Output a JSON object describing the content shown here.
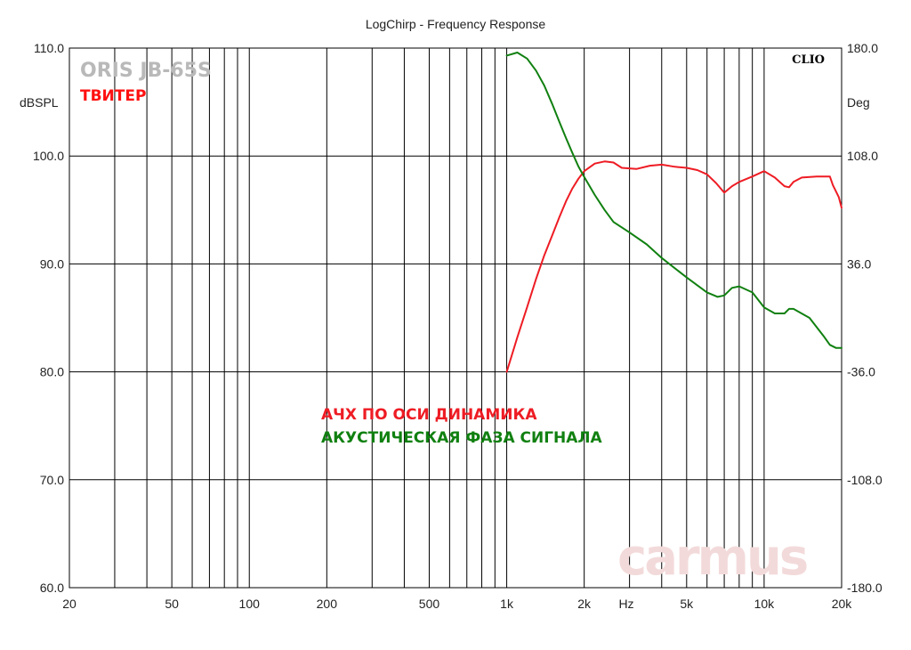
{
  "chart_data": {
    "type": "line",
    "title": "LogChirp - Frequency Response",
    "brand_label": "ORIS JB-65S",
    "subtitle": "ТВИТЕР",
    "software_label": "CLIO",
    "watermark": "carmus",
    "xlabel": "Hz",
    "ylabel_left": "dBSPL",
    "ylabel_right": "Deg",
    "x_scale": "log",
    "xlim": [
      20,
      20000
    ],
    "ylim_left": [
      60,
      110
    ],
    "ylim_right": [
      -180,
      180
    ],
    "x_tick_labels": [
      {
        "value": 20,
        "label": "20"
      },
      {
        "value": 50,
        "label": "50"
      },
      {
        "value": 100,
        "label": "100"
      },
      {
        "value": 200,
        "label": "200"
      },
      {
        "value": 500,
        "label": "500"
      },
      {
        "value": 1000,
        "label": "1k"
      },
      {
        "value": 2000,
        "label": "2k"
      },
      {
        "value": 5000,
        "label": "5k"
      },
      {
        "value": 10000,
        "label": "10k"
      },
      {
        "value": 20000,
        "label": "20k"
      }
    ],
    "y_left_ticks": [
      {
        "value": 60,
        "label": "60.0"
      },
      {
        "value": 70,
        "label": "70.0"
      },
      {
        "value": 80,
        "label": "80.0"
      },
      {
        "value": 90,
        "label": "90.0"
      },
      {
        "value": 100,
        "label": "100.0"
      },
      {
        "value": 110,
        "label": "110.0"
      }
    ],
    "y_right_ticks": [
      {
        "value": -180,
        "label": "-180.0"
      },
      {
        "value": -108,
        "label": "-108.0"
      },
      {
        "value": -36,
        "label": "-36.0"
      },
      {
        "value": 36,
        "label": "36.0"
      },
      {
        "value": 108,
        "label": "108.0"
      },
      {
        "value": 180,
        "label": "180.0"
      }
    ],
    "grid": true,
    "series": [
      {
        "name": "АЧХ ПО ОСИ ДИНАМИКА",
        "axis": "left",
        "color": "#ee1c24",
        "points": [
          [
            1000,
            80.0
          ],
          [
            1100,
            83.2
          ],
          [
            1200,
            86.0
          ],
          [
            1300,
            88.6
          ],
          [
            1400,
            90.8
          ],
          [
            1500,
            92.6
          ],
          [
            1600,
            94.3
          ],
          [
            1700,
            95.8
          ],
          [
            1800,
            97.0
          ],
          [
            1900,
            97.9
          ],
          [
            2000,
            98.6
          ],
          [
            2200,
            99.3
          ],
          [
            2400,
            99.5
          ],
          [
            2600,
            99.4
          ],
          [
            2800,
            98.9
          ],
          [
            3200,
            98.8
          ],
          [
            3600,
            99.1
          ],
          [
            4000,
            99.2
          ],
          [
            4500,
            99.0
          ],
          [
            5000,
            98.9
          ],
          [
            5500,
            98.7
          ],
          [
            6000,
            98.3
          ],
          [
            6500,
            97.5
          ],
          [
            7000,
            96.6
          ],
          [
            7500,
            97.2
          ],
          [
            8000,
            97.6
          ],
          [
            9000,
            98.1
          ],
          [
            10000,
            98.6
          ],
          [
            11000,
            98.0
          ],
          [
            12000,
            97.2
          ],
          [
            12500,
            97.1
          ],
          [
            13000,
            97.6
          ],
          [
            14000,
            98.0
          ],
          [
            16000,
            98.1
          ],
          [
            18000,
            98.1
          ],
          [
            18500,
            97.3
          ],
          [
            19500,
            96.2
          ],
          [
            20000,
            95.2
          ]
        ]
      },
      {
        "name": "АКУСТИЧЕСКАЯ ФАЗА СИГНАЛА",
        "axis": "right",
        "color": "#108010",
        "points": [
          [
            1000,
            175
          ],
          [
            1100,
            177
          ],
          [
            1200,
            173
          ],
          [
            1300,
            165
          ],
          [
            1400,
            155
          ],
          [
            1500,
            143
          ],
          [
            1600,
            131
          ],
          [
            1700,
            120
          ],
          [
            1800,
            110
          ],
          [
            1900,
            101
          ],
          [
            2000,
            94
          ],
          [
            2200,
            82
          ],
          [
            2400,
            72
          ],
          [
            2600,
            64
          ],
          [
            3000,
            57
          ],
          [
            3500,
            49
          ],
          [
            4000,
            40
          ],
          [
            5000,
            27
          ],
          [
            6000,
            17
          ],
          [
            6600,
            14
          ],
          [
            7000,
            15
          ],
          [
            7500,
            20
          ],
          [
            8000,
            21
          ],
          [
            9000,
            17
          ],
          [
            10000,
            7
          ],
          [
            11000,
            3
          ],
          [
            12000,
            3
          ],
          [
            12500,
            6
          ],
          [
            13000,
            6
          ],
          [
            15000,
            0
          ],
          [
            17000,
            -12
          ],
          [
            18000,
            -18
          ],
          [
            19000,
            -20
          ],
          [
            20000,
            -20
          ]
        ]
      }
    ],
    "annotations": [
      {
        "text": "АЧХ ПО ОСИ ДИНАМИКА",
        "color": "#ee1c24"
      },
      {
        "text": "АКУСТИЧЕСКАЯ ФАЗА СИГНАЛА",
        "color": "#108010"
      }
    ]
  }
}
